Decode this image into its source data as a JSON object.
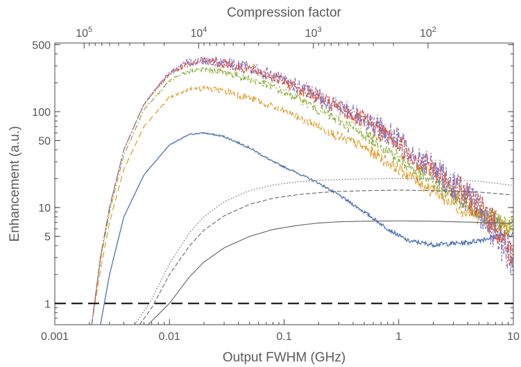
{
  "chart_data": {
    "type": "line",
    "xlabel": "Output FWHM (GHz)",
    "ylabel": "Enhancement (a.u.)",
    "top_xlabel": "Compression factor",
    "x_scale": "log",
    "y_scale": "log",
    "xlim": [
      0.001,
      10
    ],
    "ylim": [
      0.6,
      520
    ],
    "x_ticks": [
      {
        "value": 0.001,
        "label": "0.001"
      },
      {
        "value": 0.01,
        "label": "0.01"
      },
      {
        "value": 0.1,
        "label": "0.1"
      },
      {
        "value": 1,
        "label": "1"
      },
      {
        "value": 10,
        "label": "10"
      }
    ],
    "y_ticks": [
      {
        "value": 1,
        "label": "1"
      },
      {
        "value": 5,
        "label": "5"
      },
      {
        "value": 10,
        "label": "10"
      },
      {
        "value": 50,
        "label": "50"
      },
      {
        "value": 100,
        "label": "100"
      },
      {
        "value": 500,
        "label": "500"
      }
    ],
    "top_ticks": [
      {
        "value": 100000,
        "base": "10",
        "exp": "5"
      },
      {
        "value": 10000,
        "base": "10",
        "exp": "4"
      },
      {
        "value": 1000,
        "base": "10",
        "exp": "3"
      },
      {
        "value": 100,
        "base": "10",
        "exp": "2"
      }
    ],
    "top_axis_reference": {
      "factor": 10000,
      "fwhm": 0.018
    },
    "reference_line": {
      "y": 1,
      "style": "long-dash",
      "color": "#000000"
    },
    "series": [
      {
        "color": "#4a72b0",
        "style": "solid",
        "noise": 0.01,
        "points": [
          [
            0.0025,
            0.6
          ],
          [
            0.003,
            2
          ],
          [
            0.004,
            8
          ],
          [
            0.006,
            22
          ],
          [
            0.01,
            45
          ],
          [
            0.015,
            58
          ],
          [
            0.02,
            60
          ],
          [
            0.03,
            55
          ],
          [
            0.05,
            42
          ],
          [
            0.08,
            30
          ],
          [
            0.13,
            23
          ],
          [
            0.2,
            18
          ],
          [
            0.3,
            13.5
          ],
          [
            0.5,
            9
          ],
          [
            0.8,
            6
          ],
          [
            1.2,
            4.5
          ],
          [
            2,
            4.1
          ],
          [
            4,
            4.3
          ],
          [
            7,
            5
          ],
          [
            10,
            5.3
          ]
        ]
      },
      {
        "color": "#e0a030",
        "style": "dashed",
        "noise": 0.035,
        "points": [
          [
            0.0021,
            0.6
          ],
          [
            0.0025,
            2.2
          ],
          [
            0.003,
            7
          ],
          [
            0.004,
            25
          ],
          [
            0.006,
            70
          ],
          [
            0.01,
            140
          ],
          [
            0.015,
            172
          ],
          [
            0.02,
            175
          ],
          [
            0.03,
            165
          ],
          [
            0.05,
            140
          ],
          [
            0.08,
            112
          ],
          [
            0.13,
            88
          ],
          [
            0.2,
            70
          ],
          [
            0.3,
            55
          ],
          [
            0.5,
            42
          ],
          [
            0.8,
            30
          ],
          [
            1.2,
            22
          ],
          [
            2,
            15
          ],
          [
            4,
            9
          ],
          [
            7,
            7
          ],
          [
            10,
            6
          ]
        ]
      },
      {
        "color": "#8fb03d",
        "style": "dotdash",
        "noise": 0.04,
        "points": [
          [
            0.0021,
            0.6
          ],
          [
            0.0025,
            2.8
          ],
          [
            0.003,
            9
          ],
          [
            0.004,
            35
          ],
          [
            0.006,
            105
          ],
          [
            0.01,
            210
          ],
          [
            0.015,
            265
          ],
          [
            0.02,
            275
          ],
          [
            0.03,
            260
          ],
          [
            0.05,
            220
          ],
          [
            0.08,
            180
          ],
          [
            0.13,
            140
          ],
          [
            0.2,
            105
          ],
          [
            0.3,
            80
          ],
          [
            0.5,
            58
          ],
          [
            0.8,
            40
          ],
          [
            1.2,
            28
          ],
          [
            2,
            18
          ],
          [
            4,
            11
          ],
          [
            7,
            7.5
          ],
          [
            10,
            6
          ]
        ]
      },
      {
        "color": "#e0502c",
        "style": "dashdot",
        "noise": 0.06,
        "points": [
          [
            0.0021,
            0.6
          ],
          [
            0.0025,
            3
          ],
          [
            0.003,
            10
          ],
          [
            0.004,
            40
          ],
          [
            0.006,
            120
          ],
          [
            0.01,
            250
          ],
          [
            0.015,
            325
          ],
          [
            0.02,
            340
          ],
          [
            0.03,
            320
          ],
          [
            0.05,
            280
          ],
          [
            0.08,
            230
          ],
          [
            0.13,
            180
          ],
          [
            0.2,
            140
          ],
          [
            0.3,
            108
          ],
          [
            0.5,
            80
          ],
          [
            0.8,
            56
          ],
          [
            1.2,
            38
          ],
          [
            2,
            24
          ],
          [
            4,
            13
          ],
          [
            7,
            6.5
          ],
          [
            10,
            3
          ]
        ]
      },
      {
        "color": "#8a73b9",
        "style": "dashdotdot",
        "noise": 0.07,
        "points": [
          [
            0.0021,
            0.6
          ],
          [
            0.0025,
            3
          ],
          [
            0.003,
            10
          ],
          [
            0.004,
            40
          ],
          [
            0.006,
            120
          ],
          [
            0.01,
            255
          ],
          [
            0.015,
            330
          ],
          [
            0.02,
            345
          ],
          [
            0.03,
            325
          ],
          [
            0.05,
            285
          ],
          [
            0.08,
            235
          ],
          [
            0.13,
            185
          ],
          [
            0.2,
            145
          ],
          [
            0.3,
            112
          ],
          [
            0.5,
            85
          ],
          [
            0.8,
            60
          ],
          [
            1.2,
            42
          ],
          [
            2,
            26
          ],
          [
            4,
            13
          ],
          [
            7,
            5.5
          ],
          [
            10,
            2.5
          ]
        ]
      },
      {
        "color": "#606060",
        "style": "solid",
        "noise": 0,
        "points": [
          [
            0.0065,
            0.6
          ],
          [
            0.01,
            1.0
          ],
          [
            0.015,
            1.9
          ],
          [
            0.02,
            2.7
          ],
          [
            0.03,
            3.8
          ],
          [
            0.05,
            5.0
          ],
          [
            0.08,
            5.9
          ],
          [
            0.13,
            6.5
          ],
          [
            0.2,
            6.9
          ],
          [
            0.3,
            7.1
          ],
          [
            0.5,
            7.2
          ],
          [
            1,
            7.25
          ],
          [
            2,
            7.2
          ],
          [
            5,
            7.0
          ],
          [
            10,
            6.8
          ]
        ]
      },
      {
        "color": "#606060",
        "style": "dashed-fine",
        "noise": 0,
        "points": [
          [
            0.0055,
            0.6
          ],
          [
            0.007,
            0.9
          ],
          [
            0.01,
            2.0
          ],
          [
            0.015,
            4.0
          ],
          [
            0.02,
            5.8
          ],
          [
            0.03,
            8.2
          ],
          [
            0.05,
            10.8
          ],
          [
            0.08,
            12.5
          ],
          [
            0.13,
            13.6
          ],
          [
            0.2,
            14.3
          ],
          [
            0.3,
            14.7
          ],
          [
            0.5,
            15.0
          ],
          [
            1,
            15.2
          ],
          [
            2,
            15.0
          ],
          [
            5,
            14.5
          ],
          [
            10,
            13.5
          ]
        ]
      },
      {
        "color": "#606060",
        "style": "dotted",
        "noise": 0,
        "points": [
          [
            0.005,
            0.6
          ],
          [
            0.007,
            1.1
          ],
          [
            0.01,
            2.6
          ],
          [
            0.015,
            5.5
          ],
          [
            0.02,
            8.0
          ],
          [
            0.03,
            11.5
          ],
          [
            0.05,
            15.0
          ],
          [
            0.08,
            17.2
          ],
          [
            0.13,
            18.5
          ],
          [
            0.2,
            19.2
          ],
          [
            0.3,
            19.6
          ],
          [
            0.5,
            19.9
          ],
          [
            1,
            20.0
          ],
          [
            2,
            19.8
          ],
          [
            5,
            18.8
          ],
          [
            10,
            17.0
          ]
        ]
      }
    ]
  }
}
